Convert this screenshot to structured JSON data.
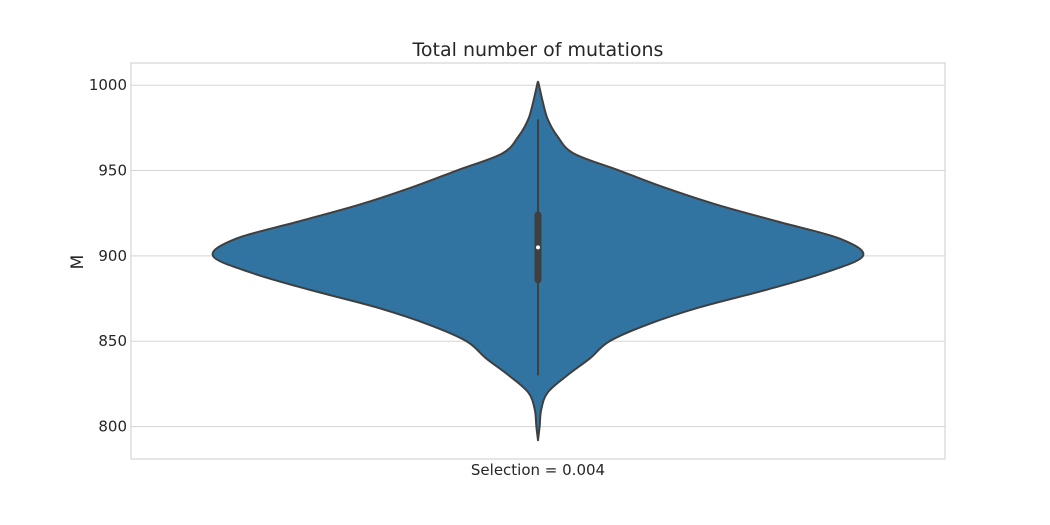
{
  "chart_data": {
    "type": "violin",
    "title": "Total number of mutations",
    "xlabel": "",
    "ylabel": "M",
    "categories": [
      "Selection = 0.004"
    ],
    "ylim": [
      781,
      1013
    ],
    "yticks": [
      800,
      850,
      900,
      950,
      1000
    ],
    "ytick_labels": [
      "800",
      "850",
      "900",
      "950",
      "1000"
    ],
    "grid": true,
    "legend": "none",
    "series": [
      {
        "category": "Selection = 0.004",
        "density_y": [
          792,
          800,
          810,
          820,
          830,
          840,
          850,
          860,
          870,
          880,
          890,
          900,
          910,
          920,
          930,
          940,
          950,
          960,
          970,
          980,
          990,
          1000,
          1002
        ],
        "density": [
          0.0,
          0.005,
          0.01,
          0.03,
          0.09,
          0.16,
          0.22,
          0.34,
          0.5,
          0.7,
          0.88,
          1.0,
          0.93,
          0.74,
          0.55,
          0.39,
          0.25,
          0.11,
          0.06,
          0.03,
          0.015,
          0.003,
          0.0
        ],
        "whisker": [
          830,
          980
        ],
        "quartiles": [
          886,
          924
        ],
        "median": 905
      }
    ],
    "colors": {
      "violin_fill": "#3274a1",
      "violin_edge": "#3f3f3f",
      "box": "#3f3f3f",
      "median_dot": "#ffffff",
      "grid": "#d5d5d5",
      "frame": "#cccccc"
    }
  }
}
